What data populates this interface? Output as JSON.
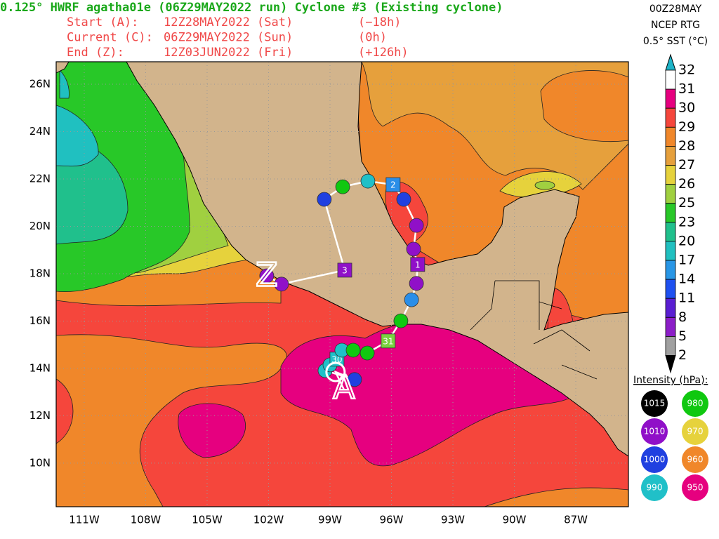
{
  "header": {
    "title": "0.125° HWRF agatha01e (06Z29MAY2022 run) Cyclone #3 (Existing cyclone)",
    "rows": [
      [
        "Start (A):",
        "12Z28MAY2022 (Sat)",
        "(−18h)"
      ],
      [
        "Current (C):",
        "06Z29MAY2022 (Sun)",
        "(0h)"
      ],
      [
        "End (Z):",
        "12Z03JUN2022 (Fri)",
        "(+126h)"
      ]
    ],
    "right": [
      "00Z28MAY",
      "NCEP RTG",
      "0.5° SST (°C)"
    ]
  },
  "map": {
    "lon_range": [
      -112.37,
      -84.43
    ],
    "lat_range": [
      8.16,
      26.95
    ],
    "lat_labels": [
      {
        "value": 26,
        "label": "26N"
      },
      {
        "value": 24,
        "label": "24N"
      },
      {
        "value": 22,
        "label": "22N"
      },
      {
        "value": 20,
        "label": "20N"
      },
      {
        "value": 18,
        "label": "18N"
      },
      {
        "value": 16,
        "label": "16N"
      },
      {
        "value": 14,
        "label": "14N"
      },
      {
        "value": 12,
        "label": "12N"
      },
      {
        "value": 10,
        "label": "10N"
      }
    ],
    "lon_labels": [
      {
        "value": -111,
        "label": "111W"
      },
      {
        "value": -108,
        "label": "108W"
      },
      {
        "value": -105,
        "label": "105W"
      },
      {
        "value": -102,
        "label": "102W"
      },
      {
        "value": -99,
        "label": "99W"
      },
      {
        "value": -96,
        "label": "96W"
      },
      {
        "value": -93,
        "label": "93W"
      },
      {
        "value": -90,
        "label": "90W"
      },
      {
        "value": -87,
        "label": "87W"
      }
    ],
    "grid": true
  },
  "sst_scale": {
    "labels": [
      32,
      31,
      30,
      29,
      28,
      27,
      26,
      25,
      23,
      20,
      17,
      14,
      11,
      8,
      5,
      2
    ],
    "colors": [
      "#1eb4c8",
      "#ffffff",
      "#e6007f",
      "#f5463c",
      "#f0872a",
      "#e6a03c",
      "#e6d23c",
      "#a0d040",
      "#28c828",
      "#20c08c",
      "#20c0c0",
      "#2896e6",
      "#1e50f0",
      "#5a1ed2",
      "#8c1ec8",
      "#a0a0a0",
      "#000000"
    ]
  },
  "intensity": {
    "title": "Intensity (hPa):",
    "items": [
      {
        "label": 1015,
        "color": "#000000"
      },
      {
        "label": 980,
        "color": "#10c810"
      },
      {
        "label": 1010,
        "color": "#9010c8"
      },
      {
        "label": 970,
        "color": "#e6d23c"
      },
      {
        "label": 1000,
        "color": "#2040e0"
      },
      {
        "label": 960,
        "color": "#f0872a"
      },
      {
        "label": 990,
        "color": "#20c0c8"
      },
      {
        "label": 950,
        "color": "#e6007f"
      }
    ]
  },
  "track": {
    "start": {
      "letter": "A",
      "lon": -98.32,
      "lat": 13.11
    },
    "current": {
      "lon": -98.73,
      "lat": 13.85
    },
    "end": {
      "letter": "Z",
      "lon": -102.09,
      "lat": 17.85
    },
    "points": [
      {
        "lon": -97.8,
        "lat": 13.53,
        "color": "#2040e0"
      },
      {
        "lon": -99.24,
        "lat": 13.91,
        "color": "#20c0c8"
      },
      {
        "lon": -99.0,
        "lat": 14.15,
        "color": "#20c0c8"
      },
      {
        "lon": -98.66,
        "lat": 14.39,
        "color": "#20c0c8",
        "label": "30"
      },
      {
        "lon": -98.42,
        "lat": 14.77,
        "color": "#20c0c8"
      },
      {
        "lon": -97.87,
        "lat": 14.77,
        "color": "#10c810"
      },
      {
        "lon": -97.18,
        "lat": 14.65,
        "color": "#10c810"
      },
      {
        "lon": -96.16,
        "lat": 15.16,
        "color": "#7ad040",
        "label": "31"
      },
      {
        "lon": -95.54,
        "lat": 16.01,
        "color": "#10c810"
      },
      {
        "lon": -95.02,
        "lat": 16.9,
        "color": "#2a8ee8"
      },
      {
        "lon": -94.78,
        "lat": 17.59,
        "color": "#9010c8"
      },
      {
        "lon": -94.72,
        "lat": 18.39,
        "color": "#9010c8",
        "label": "1"
      },
      {
        "lon": -94.92,
        "lat": 19.04,
        "color": "#9010c8"
      },
      {
        "lon": -94.78,
        "lat": 20.04,
        "color": "#9010c8"
      },
      {
        "lon": -95.4,
        "lat": 21.14,
        "color": "#2040e0"
      },
      {
        "lon": -95.92,
        "lat": 21.76,
        "color": "#2a8ee8",
        "label": "2"
      },
      {
        "lon": -97.15,
        "lat": 21.91,
        "color": "#20c0c8"
      },
      {
        "lon": -98.38,
        "lat": 21.67,
        "color": "#10c810"
      },
      {
        "lon": -99.28,
        "lat": 21.14,
        "color": "#2040e0"
      },
      {
        "lon": -98.28,
        "lat": 18.15,
        "color": "#9010c8",
        "label": "3"
      },
      {
        "lon": -101.37,
        "lat": 17.56,
        "color": "#9010c8"
      },
      {
        "lon": -102.09,
        "lat": 17.91,
        "color": "#9010c8"
      }
    ]
  }
}
